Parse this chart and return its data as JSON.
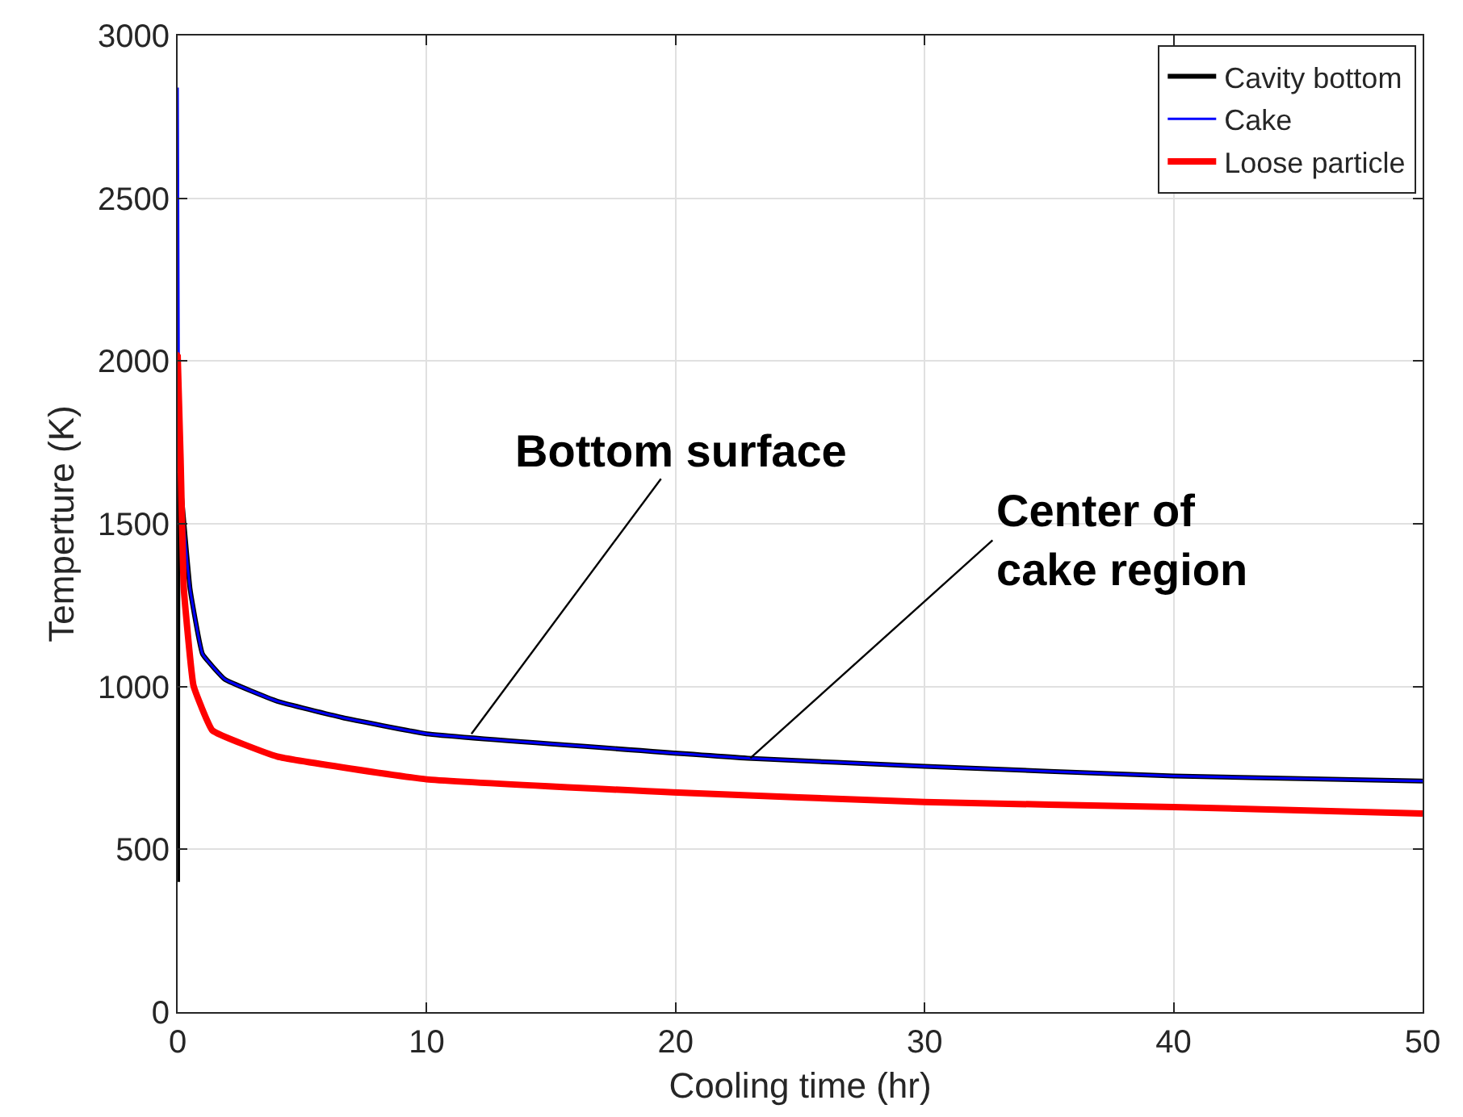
{
  "chart_data": {
    "type": "line",
    "xlabel": "Cooling time (hr)",
    "ylabel": "Temperture (K)",
    "xlim": [
      0,
      50
    ],
    "xticks": [
      0,
      10,
      20,
      30,
      40,
      50
    ],
    "ylim": [
      0,
      3000
    ],
    "yticks": [
      0,
      500,
      1000,
      1500,
      2000,
      2500,
      3000
    ],
    "grid": true,
    "legend": "top right",
    "series": [
      {
        "name": "Cavity bottom",
        "color": "#000000",
        "x": [
          0,
          0.04,
          0.12,
          0.5,
          1.0,
          1.9,
          4.0,
          6.6,
          10,
          22.9,
          30,
          40,
          50
        ],
        "values": [
          400,
          1650,
          1615,
          1300,
          1100,
          1022,
          955,
          905,
          855,
          780,
          755,
          725,
          710
        ]
      },
      {
        "name": "Cake",
        "color": "#0000ff",
        "x": [
          0,
          0.04,
          0.12,
          0.5,
          1.0,
          1.9,
          4.0,
          6.6,
          10,
          22.9,
          30,
          40,
          50
        ],
        "values": [
          2840,
          2030,
          1615,
          1300,
          1100,
          1022,
          955,
          905,
          855,
          780,
          755,
          725,
          710
        ]
      },
      {
        "name": "Loose particle",
        "color": "#ff0000",
        "marker": "circle",
        "x": [
          0,
          0.12,
          0.25,
          0.64,
          1.4,
          4,
          10,
          19.9,
          30,
          40,
          50
        ],
        "values": [
          2020,
          1695,
          1300,
          1002,
          865,
          785,
          715,
          675,
          645,
          630,
          610
        ]
      }
    ],
    "annotations": [
      {
        "text": "Bottom surface",
        "x": 11.8,
        "y": 855
      },
      {
        "text": "Center of\ncake region",
        "x": 23,
        "y": 780
      }
    ]
  }
}
